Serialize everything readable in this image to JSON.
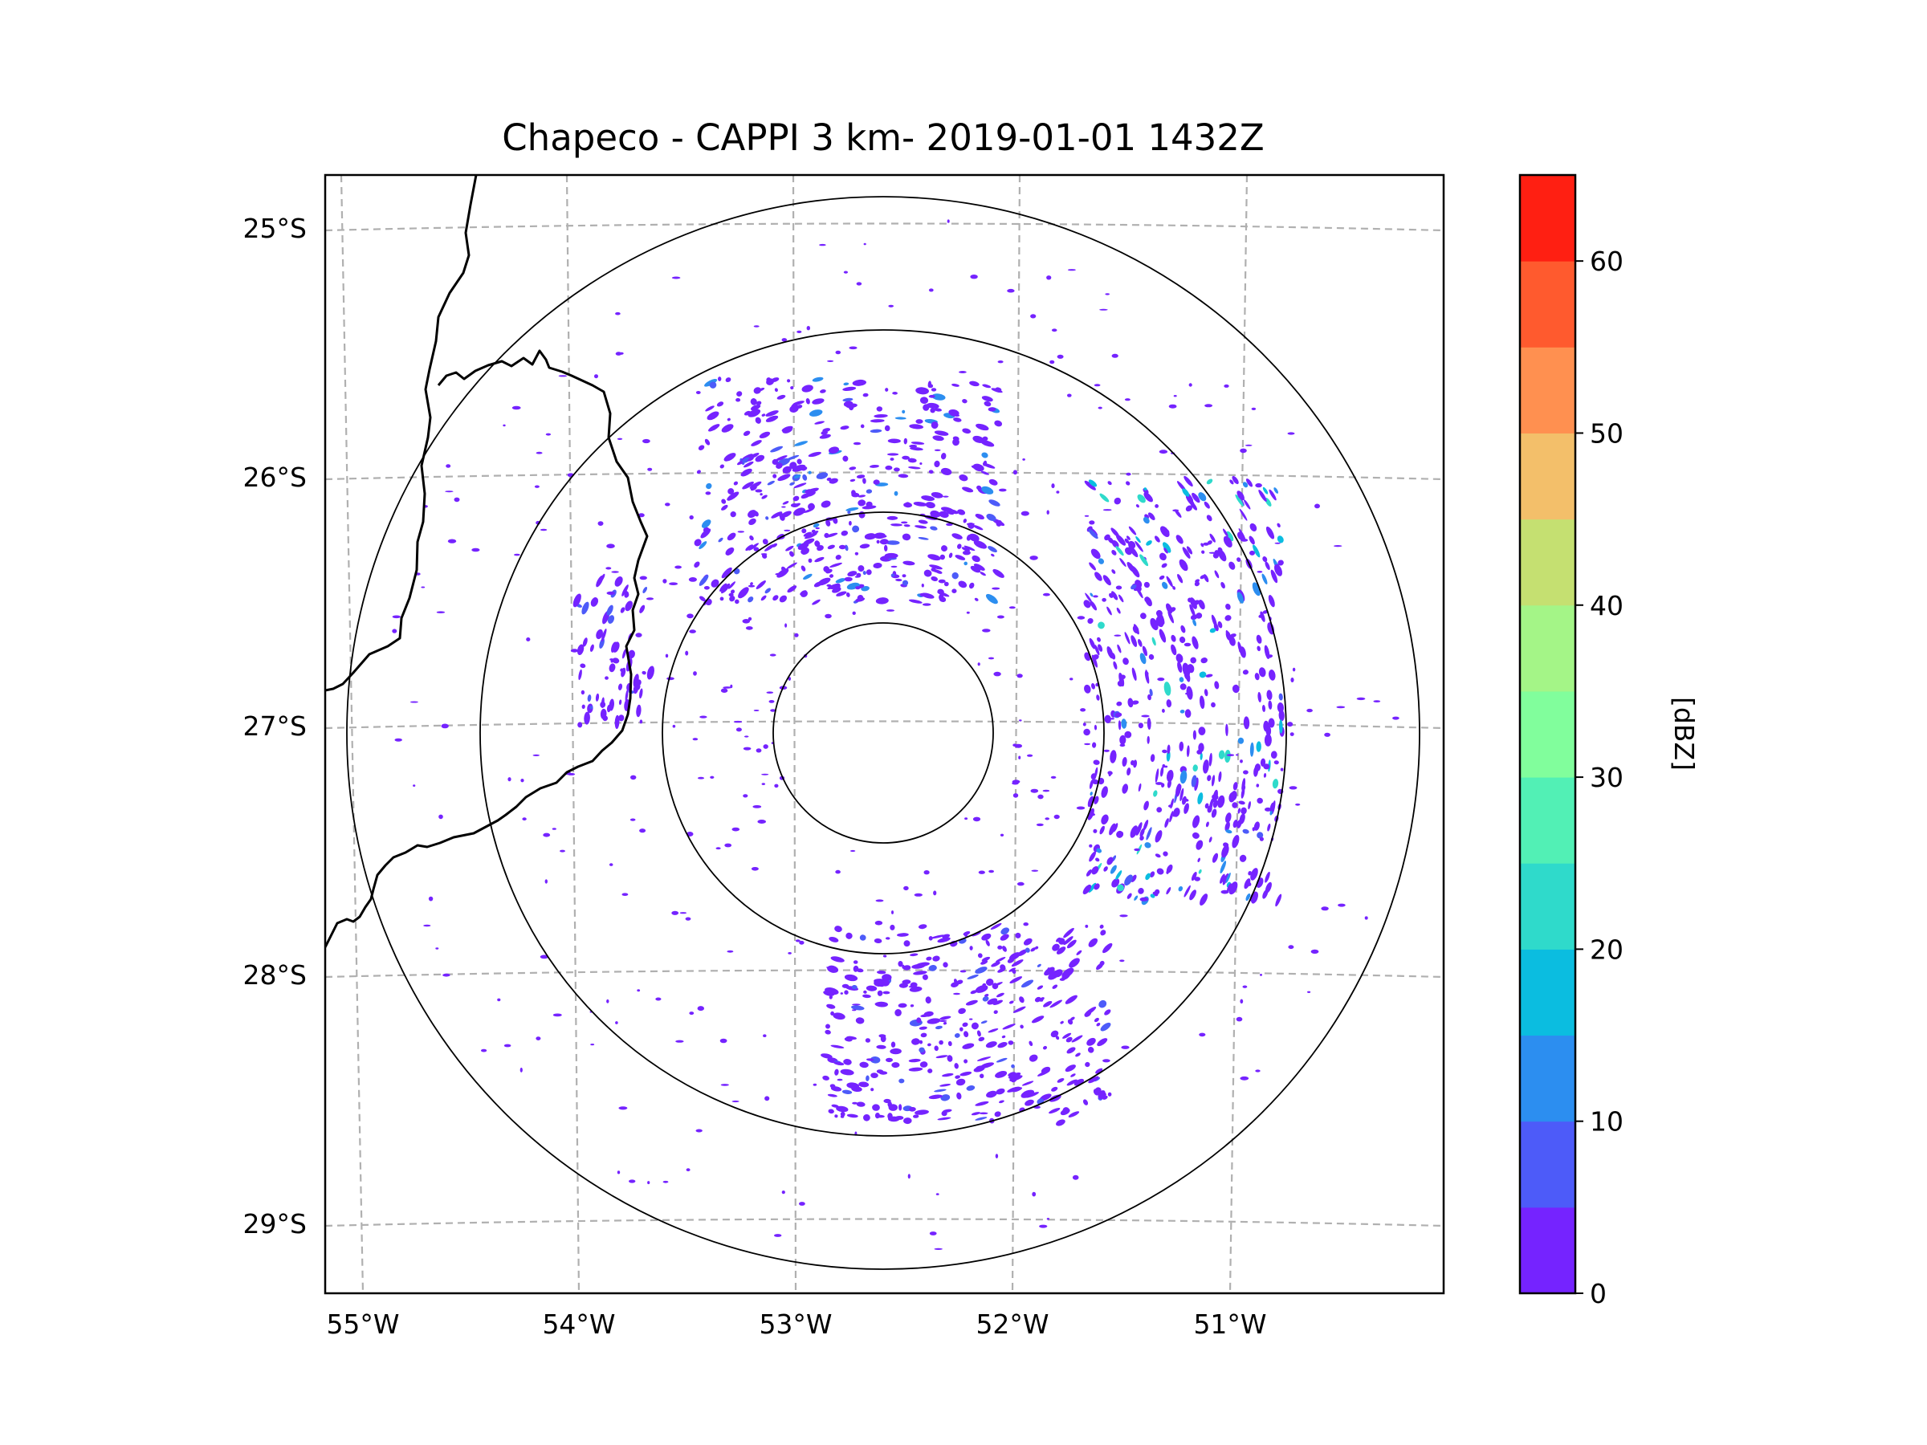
{
  "title": "Chapeco - CAPPI 3 km- 2019-01-01 1432Z",
  "chart_data": {
    "type": "heatmap",
    "title": "Chapeco - CAPPI 3 km- 2019-01-01 1432Z",
    "projection": "geographic map with radar range rings",
    "radar_center": {
      "lon": -52.6,
      "lat": -27.03
    },
    "x_ticks": [
      "55°W",
      "54°W",
      "53°W",
      "52°W",
      "51°W"
    ],
    "x_tick_values": [
      -55,
      -54,
      -53,
      -52,
      -51
    ],
    "y_ticks": [
      "25°S",
      "26°S",
      "27°S",
      "28°S",
      "29°S"
    ],
    "y_tick_values": [
      -25,
      -26,
      -27,
      -28,
      -29
    ],
    "xlim": [
      -55.2,
      -50.06
    ],
    "ylim": [
      -29.28,
      -24.78
    ],
    "range_rings_deg": [
      0.47,
      0.92,
      1.7,
      2.18
    ],
    "grid": true,
    "colorbar": {
      "label": "[dBZ]",
      "ticks": [
        "0",
        "10",
        "20",
        "30",
        "40",
        "50",
        "60"
      ],
      "tick_values": [
        0,
        10,
        20,
        30,
        40,
        50,
        60
      ],
      "range": [
        0,
        65
      ],
      "levels": [
        0,
        5,
        10,
        15,
        20,
        25,
        30,
        35,
        40,
        45,
        50,
        55,
        60,
        65
      ],
      "colors": [
        "#7523ff",
        "#4d5bf9",
        "#2c8ef0",
        "#0bbde0",
        "#2fdacb",
        "#52f0b5",
        "#81fe9c",
        "#a4f587",
        "#c5e071",
        "#f3bf6a",
        "#ff9050",
        "#ff5a2e",
        "#ff1f12"
      ]
    },
    "echo_regions": [
      {
        "name": "north arc",
        "lon": [
          -53.5,
          -52.1
        ],
        "lat": [
          -26.5,
          -25.6
        ],
        "dbz_range": [
          0,
          15
        ]
      },
      {
        "name": "east band",
        "lon": [
          -51.7,
          -50.8
        ],
        "lat": [
          -27.7,
          -26.0
        ],
        "dbz_range": [
          0,
          25
        ]
      },
      {
        "name": "west patch",
        "lon": [
          -54.05,
          -53.7
        ],
        "lat": [
          -27.0,
          -26.4
        ],
        "dbz_range": [
          0,
          10
        ]
      },
      {
        "name": "south arc",
        "lon": [
          -52.9,
          -51.6
        ],
        "lat": [
          -28.6,
          -27.8
        ],
        "dbz_range": [
          0,
          10
        ]
      }
    ]
  }
}
